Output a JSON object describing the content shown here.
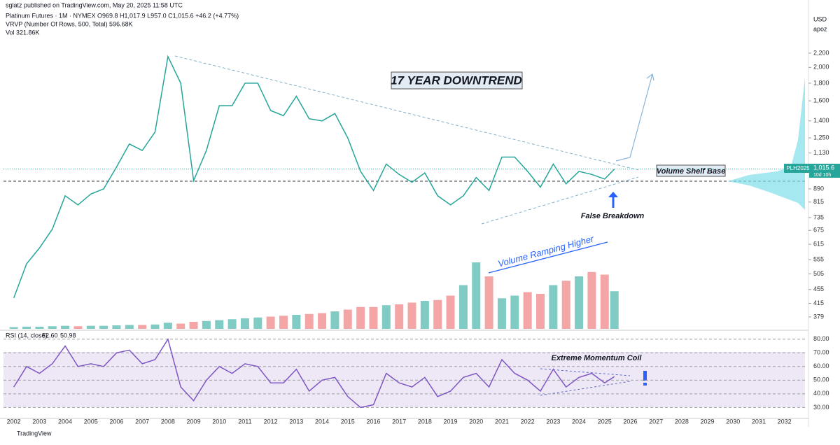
{
  "chart_data": {
    "type": "line",
    "header": [
      "sglatz published on TradingView.com, May 20, 2025 11:58 UTC",
      "Platinum Futures · 1M · NYMEX  O969.8 H1,017.9 L957.0 C1,015.6 +46.2 (+4.77%)",
      "VRVP (Number Of Rows, 500, Total)  596.68K",
      "Vol  321.86K"
    ],
    "currency": "USD",
    "currency_sub": "apoz",
    "symbol": "PLH2025",
    "last_price": {
      "value": 1015.6,
      "label": "1,015.6"
    },
    "countdown": "10d 10h",
    "footer": "TradingView",
    "annotations": [
      "17 YEAR DOWNTREND",
      "Volume Shelf Base",
      "False Breakdown",
      "Volume Ramping Higher",
      "Extreme Momentum Coil"
    ],
    "x": [
      2002.0,
      2002.5,
      2003.0,
      2003.5,
      2004.0,
      2004.5,
      2005.0,
      2005.5,
      2006.0,
      2006.5,
      2007.0,
      2007.5,
      2008.0,
      2008.5,
      2009.0,
      2009.5,
      2010.0,
      2010.5,
      2011.0,
      2011.5,
      2012.0,
      2012.5,
      2013.0,
      2013.5,
      2014.0,
      2014.5,
      2015.0,
      2015.5,
      2016.0,
      2016.5,
      2017.0,
      2017.5,
      2018.0,
      2018.5,
      2019.0,
      2019.5,
      2020.0,
      2020.5,
      2021.0,
      2021.5,
      2022.0,
      2022.5,
      2023.0,
      2023.5,
      2024.0,
      2024.5,
      2025.0,
      2025.38
    ],
    "xlim": [
      2001.6,
      2032.8
    ],
    "xticks": [
      2002,
      2003,
      2004,
      2005,
      2006,
      2007,
      2008,
      2009,
      2010,
      2011,
      2012,
      2013,
      2014,
      2015,
      2016,
      2017,
      2018,
      2019,
      2020,
      2021,
      2022,
      2023,
      2024,
      2025,
      2026,
      2027,
      2028,
      2029,
      2030,
      2031,
      2032
    ],
    "log_scale": true,
    "ylim": [
      350,
      2855
    ],
    "yticks": [
      {
        "value": 2200,
        "label": "2,200"
      },
      {
        "value": 2000,
        "label": "2,000"
      },
      {
        "value": 1800,
        "label": "1,800"
      },
      {
        "value": 1600,
        "label": "1,600"
      },
      {
        "value": 1400,
        "label": "1,400"
      },
      {
        "value": 1250,
        "label": "1,250"
      },
      {
        "value": 1130,
        "label": "1,130"
      },
      890,
      815,
      735,
      675,
      615,
      555,
      505,
      455,
      415,
      379
    ],
    "series": [
      {
        "name": "Platinum Futures",
        "color": "#26a69a",
        "values": [
          430,
          540,
          600,
          680,
          850,
          800,
          860,
          890,
          1030,
          1200,
          1150,
          1300,
          2150,
          1800,
          940,
          1150,
          1550,
          1550,
          1800,
          1800,
          1500,
          1450,
          1650,
          1420,
          1400,
          1470,
          1250,
          1000,
          880,
          1050,
          980,
          930,
          990,
          850,
          800,
          850,
          960,
          880,
          1100,
          1100,
          1000,
          900,
          1050,
          920,
          1000,
          980,
          950,
          1015.6
        ]
      },
      {
        "name": "Vol",
        "axis": "y2",
        "up_color": "#80cbc4",
        "down_color": "#f4a6a6",
        "values": [
          20,
          25,
          25,
          30,
          35,
          30,
          35,
          35,
          40,
          45,
          45,
          50,
          70,
          60,
          80,
          90,
          100,
          110,
          120,
          130,
          140,
          150,
          160,
          170,
          180,
          200,
          220,
          250,
          250,
          270,
          280,
          300,
          320,
          330,
          380,
          500,
          760,
          600,
          350,
          380,
          420,
          400,
          500,
          550,
          600,
          650,
          620,
          430
        ]
      }
    ],
    "y2lim": [
      0,
      1000
    ],
    "rsi": {
      "label": "RSI (14, close)",
      "value": 52.6,
      "value_label": "52.60",
      "ma_label": "50.98",
      "color": "#7e57c2",
      "values": [
        45,
        60,
        55,
        62,
        75,
        60,
        62,
        60,
        70,
        72,
        62,
        65,
        80,
        45,
        35,
        50,
        60,
        55,
        62,
        60,
        48,
        48,
        58,
        42,
        50,
        52,
        38,
        30,
        32,
        55,
        48,
        45,
        52,
        38,
        42,
        52,
        55,
        45,
        65,
        55,
        50,
        42,
        58,
        45,
        52,
        55,
        48,
        52.6
      ],
      "ylim": [
        22,
        85
      ],
      "yticks": [
        {
          "value": 80,
          "label": "80.00"
        },
        {
          "value": 70,
          "label": "70.00"
        },
        {
          "value": 60,
          "label": "60.00"
        },
        {
          "value": 50,
          "label": "50.00"
        },
        {
          "value": 40,
          "label": "40.00"
        },
        {
          "value": 30,
          "label": "30.00"
        }
      ]
    }
  }
}
